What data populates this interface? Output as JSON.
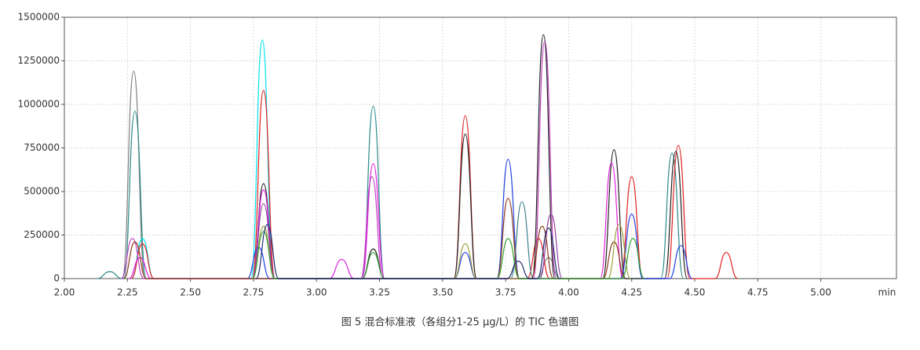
{
  "chart_data": {
    "type": "line",
    "caption": "图 5 混合标准液（各组分1-25 μg/L）的 TIC 色谱图",
    "x_label": "min",
    "xlim": [
      2.0,
      5.3
    ],
    "ylim": [
      0,
      1500000
    ],
    "xticks": [
      {
        "value": 2,
        "label": "2.00"
      },
      {
        "value": 2.25,
        "label": "2.25"
      },
      {
        "value": 2.5,
        "label": "2.50"
      },
      {
        "value": 2.75,
        "label": "2.75"
      },
      {
        "value": 3,
        "label": "3.00"
      },
      {
        "value": 3.25,
        "label": "3.25"
      },
      {
        "value": 3.5,
        "label": "3.50"
      },
      {
        "value": 3.75,
        "label": "3.75"
      },
      {
        "value": 4,
        "label": "4.00"
      },
      {
        "value": 4.25,
        "label": "4.25"
      },
      {
        "value": 4.5,
        "label": "4.50"
      },
      {
        "value": 4.75,
        "label": "4.75"
      },
      {
        "value": 5,
        "label": "5.00"
      }
    ],
    "yticks": [
      0,
      250000,
      500000,
      750000,
      1000000,
      1250000,
      1500000
    ],
    "grid": true,
    "series": [
      {
        "color": "#808080",
        "x": [
          2.23,
          2.275,
          2.32,
          3.875,
          3.92,
          3.965
        ],
        "values": [
          0,
          1190000,
          0,
          0,
          120000,
          0
        ]
      },
      {
        "color": "#2a8a8a",
        "x": [
          2.13,
          2.18,
          2.23,
          2.235,
          2.28,
          2.325,
          3.18,
          3.225,
          3.27,
          4.365,
          4.41,
          4.455
        ],
        "values": [
          0,
          40000,
          0,
          0,
          960000,
          0,
          0,
          990000,
          0,
          0,
          720000,
          0
        ]
      },
      {
        "color": "#00e5ee",
        "x": [
          2.265,
          2.31,
          2.355,
          2.74,
          2.785,
          2.83
        ],
        "values": [
          0,
          230000,
          0,
          0,
          1370000,
          0
        ]
      },
      {
        "color": "#e02020",
        "x": [
          2.265,
          2.31,
          2.355,
          2.745,
          2.79,
          2.835,
          3.545,
          3.59,
          3.635,
          3.835,
          3.88,
          3.925,
          4.205,
          4.25,
          4.295,
          4.39,
          4.435,
          4.48,
          4.58,
          4.625,
          4.67
        ],
        "values": [
          0,
          200000,
          0,
          0,
          1080000,
          0,
          0,
          935000,
          0,
          0,
          230000,
          0,
          0,
          585000,
          0,
          0,
          765000,
          0,
          0,
          150000,
          0
        ]
      },
      {
        "color": "#202020",
        "x": [
          2.745,
          2.79,
          2.835,
          3.18,
          3.225,
          3.27,
          3.545,
          3.59,
          3.635,
          3.855,
          3.9,
          3.945,
          4.135,
          4.18,
          4.225,
          4.38,
          4.425,
          4.47
        ],
        "values": [
          0,
          545000,
          0,
          0,
          170000,
          0,
          0,
          830000,
          0,
          0,
          1400000,
          0,
          0,
          740000,
          0,
          0,
          730000,
          0
        ]
      },
      {
        "color": "#e020e0",
        "x": [
          2.255,
          2.3,
          2.345,
          2.745,
          2.79,
          2.835,
          3.05,
          3.1,
          3.15,
          3.18,
          3.225,
          3.27,
          4.125,
          4.17,
          4.215
        ],
        "values": [
          0,
          120000,
          0,
          0,
          510000,
          0,
          0,
          110000,
          0,
          0,
          660000,
          0,
          0,
          665000,
          0
        ]
      },
      {
        "color": "#c040c0",
        "x": [
          2.225,
          2.27,
          2.315,
          3.175,
          3.22,
          3.265,
          3.86,
          3.905,
          3.95
        ],
        "values": [
          0,
          230000,
          0,
          0,
          585000,
          0,
          0,
          1360000,
          0
        ]
      },
      {
        "color": "#9040a0",
        "x": [
          2.745,
          2.79,
          2.835,
          3.885,
          3.93,
          3.975
        ],
        "values": [
          0,
          430000,
          0,
          0,
          370000,
          0
        ]
      },
      {
        "color": "#2040e0",
        "x": [
          2.725,
          2.77,
          2.815,
          3.545,
          3.59,
          3.635,
          3.715,
          3.76,
          3.805,
          4.205,
          4.25,
          4.295,
          4.4,
          4.445,
          4.49
        ],
        "values": [
          0,
          180000,
          0,
          0,
          150000,
          0,
          0,
          685000,
          0,
          0,
          370000,
          0,
          0,
          190000,
          0
        ]
      },
      {
        "color": "#3f7f8f",
        "x": [
          3.77,
          3.815,
          3.86
        ],
        "values": [
          0,
          440000,
          0
        ]
      },
      {
        "color": "#8b3a1a",
        "x": [
          2.235,
          2.28,
          2.325,
          3.715,
          3.76,
          3.805,
          3.85,
          3.895,
          3.94,
          4.135,
          4.18,
          4.225
        ],
        "values": [
          0,
          210000,
          0,
          0,
          460000,
          0,
          0,
          300000,
          0,
          0,
          210000,
          0
        ]
      },
      {
        "color": "#a0a040",
        "x": [
          2.745,
          2.79,
          2.835,
          3.545,
          3.59,
          3.635,
          4.155,
          4.2,
          4.245
        ],
        "values": [
          0,
          300000,
          0,
          0,
          200000,
          0,
          0,
          310000,
          0
        ]
      },
      {
        "color": "#30a030",
        "x": [
          2.745,
          2.79,
          2.835,
          3.18,
          3.225,
          3.27,
          3.715,
          3.76,
          3.805,
          4.21,
          4.255,
          4.3
        ],
        "values": [
          0,
          270000,
          0,
          0,
          150000,
          0,
          0,
          230000,
          0,
          0,
          230000,
          0
        ]
      },
      {
        "color": "#1a2a6a",
        "x": [
          2.76,
          2.805,
          2.85,
          3.755,
          3.8,
          3.845,
          3.875,
          3.92,
          3.965
        ],
        "values": [
          0,
          310000,
          0,
          0,
          100000,
          0,
          0,
          290000,
          0
        ]
      }
    ]
  }
}
